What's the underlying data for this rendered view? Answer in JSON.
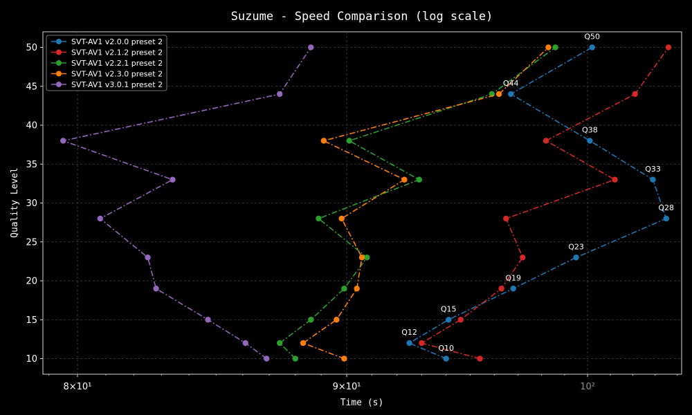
{
  "chart_data": {
    "type": "line",
    "title": "Suzume - Speed Comparison (log scale)",
    "xlabel": "Time (s)",
    "ylabel": "Quality Level",
    "xscale": "log",
    "xlim": [
      78.8,
      104.2
    ],
    "ylim": [
      8,
      52
    ],
    "grid": true,
    "legend_position": "top-left",
    "x_ticks": [
      {
        "value": 80,
        "label": "8×10¹",
        "style": "normal"
      },
      {
        "value": 90,
        "label": "9×10¹",
        "style": "normal"
      },
      {
        "value": 100,
        "label": "10²",
        "style": "dim"
      }
    ],
    "y_ticks": [
      10,
      15,
      20,
      25,
      30,
      35,
      40,
      45,
      50
    ],
    "series": [
      {
        "name": "SVT-AV1 v2.0.0 preset 2",
        "color": "#1f77b4",
        "points": [
          [
            94.0,
            10
          ],
          [
            92.5,
            12
          ],
          [
            94.1,
            15
          ],
          [
            96.8,
            19
          ],
          [
            99.5,
            23
          ],
          [
            103.5,
            28
          ],
          [
            102.9,
            33
          ],
          [
            100.1,
            38
          ],
          [
            96.7,
            44
          ],
          [
            100.2,
            50
          ]
        ]
      },
      {
        "name": "SVT-AV1 v2.1.2 preset 2",
        "color": "#d62728",
        "points": [
          [
            95.4,
            10
          ],
          [
            93.0,
            12
          ],
          [
            94.6,
            15
          ],
          [
            96.3,
            19
          ],
          [
            97.2,
            23
          ],
          [
            96.5,
            28
          ],
          [
            101.2,
            33
          ],
          [
            98.2,
            38
          ],
          [
            102.1,
            44
          ],
          [
            103.6,
            50
          ]
        ]
      },
      {
        "name": "SVT-AV1 v2.2.1 preset 2",
        "color": "#2ca02c",
        "points": [
          [
            88.0,
            10
          ],
          [
            87.4,
            12
          ],
          [
            88.6,
            15
          ],
          [
            89.9,
            19
          ],
          [
            90.8,
            23
          ],
          [
            88.9,
            28
          ],
          [
            92.9,
            33
          ],
          [
            90.1,
            38
          ],
          [
            95.9,
            44
          ],
          [
            98.6,
            50
          ]
        ]
      },
      {
        "name": "SVT-AV1 v2.3.0 preset 2",
        "color": "#ff7f0e",
        "points": [
          [
            89.9,
            10
          ],
          [
            88.3,
            12
          ],
          [
            89.6,
            15
          ],
          [
            90.4,
            19
          ],
          [
            90.6,
            23
          ],
          [
            89.8,
            28
          ],
          [
            92.3,
            33
          ],
          [
            89.1,
            38
          ],
          [
            96.2,
            44
          ],
          [
            98.3,
            50
          ]
        ]
      },
      {
        "name": "SVT-AV1 v3.0.1 preset 2",
        "color": "#9467bd",
        "points": [
          [
            86.9,
            10
          ],
          [
            86.1,
            12
          ],
          [
            84.7,
            15
          ],
          [
            82.8,
            19
          ],
          [
            82.5,
            23
          ],
          [
            80.8,
            28
          ],
          [
            83.4,
            33
          ],
          [
            79.5,
            38
          ],
          [
            87.4,
            44
          ],
          [
            88.6,
            50
          ]
        ]
      }
    ],
    "annotations": [
      {
        "text": "Q10",
        "x": 94.0,
        "y": 10
      },
      {
        "text": "Q12",
        "x": 92.5,
        "y": 12
      },
      {
        "text": "Q15",
        "x": 94.1,
        "y": 15
      },
      {
        "text": "Q19",
        "x": 96.8,
        "y": 19
      },
      {
        "text": "Q23",
        "x": 99.5,
        "y": 23
      },
      {
        "text": "Q28",
        "x": 103.5,
        "y": 28
      },
      {
        "text": "Q33",
        "x": 102.9,
        "y": 33
      },
      {
        "text": "Q38",
        "x": 100.1,
        "y": 38
      },
      {
        "text": "Q44",
        "x": 96.7,
        "y": 44
      },
      {
        "text": "Q50",
        "x": 100.2,
        "y": 50
      }
    ]
  }
}
